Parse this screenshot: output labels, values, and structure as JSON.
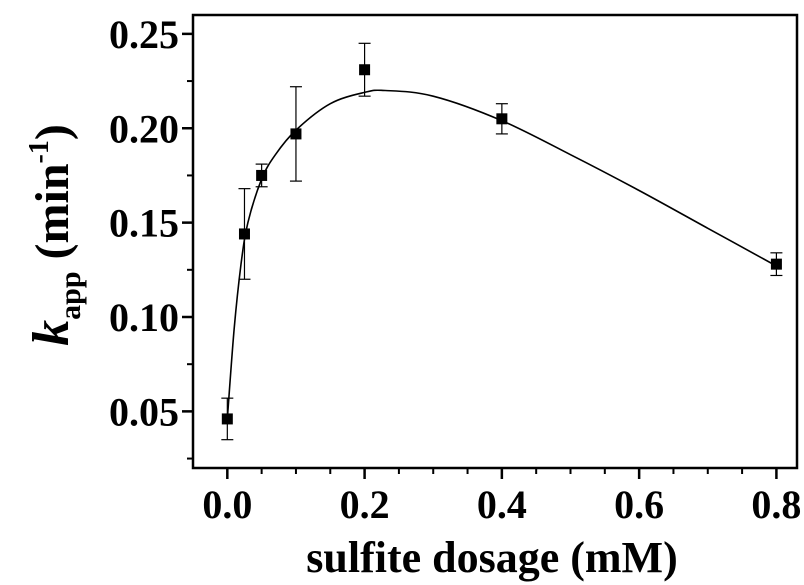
{
  "chart_data": {
    "type": "scatter",
    "title": "",
    "xlabel": "sulfite dosage (mM)",
    "ylabel": {
      "symbol": "k",
      "subscript": "app",
      "unit_open": "(min",
      "unit_superscript": "-1",
      "unit_close": ")"
    },
    "xlim": [
      -0.05,
      0.83
    ],
    "ylim": [
      0.02,
      0.26
    ],
    "x_ticks": [
      0.0,
      0.2,
      0.4,
      0.6,
      0.8
    ],
    "x_tick_labels": [
      "0.0",
      "0.2",
      "0.4",
      "0.6",
      "0.8"
    ],
    "y_ticks": [
      0.05,
      0.1,
      0.15,
      0.2,
      0.25
    ],
    "y_tick_labels": [
      "0.05",
      "0.10",
      "0.15",
      "0.20",
      "0.25"
    ],
    "grid": false,
    "legend": "none",
    "series": [
      {
        "marker": "square",
        "color": "#000000",
        "x": [
          0.0,
          0.025,
          0.05,
          0.1,
          0.2,
          0.4,
          0.8
        ],
        "y": [
          0.046,
          0.144,
          0.175,
          0.197,
          0.231,
          0.205,
          0.128
        ],
        "error": [
          0.011,
          0.024,
          0.006,
          0.025,
          0.014,
          0.008,
          0.006
        ]
      }
    ],
    "fit_curve": {
      "color": "#000000",
      "x": [
        0.0,
        0.01,
        0.02,
        0.03,
        0.05,
        0.07,
        0.1,
        0.15,
        0.2,
        0.23,
        0.3,
        0.4,
        0.5,
        0.6,
        0.7,
        0.8
      ],
      "y": [
        0.046,
        0.094,
        0.128,
        0.15,
        0.173,
        0.186,
        0.199,
        0.213,
        0.219,
        0.22,
        0.217,
        0.204,
        0.186,
        0.167,
        0.147,
        0.127
      ]
    }
  }
}
